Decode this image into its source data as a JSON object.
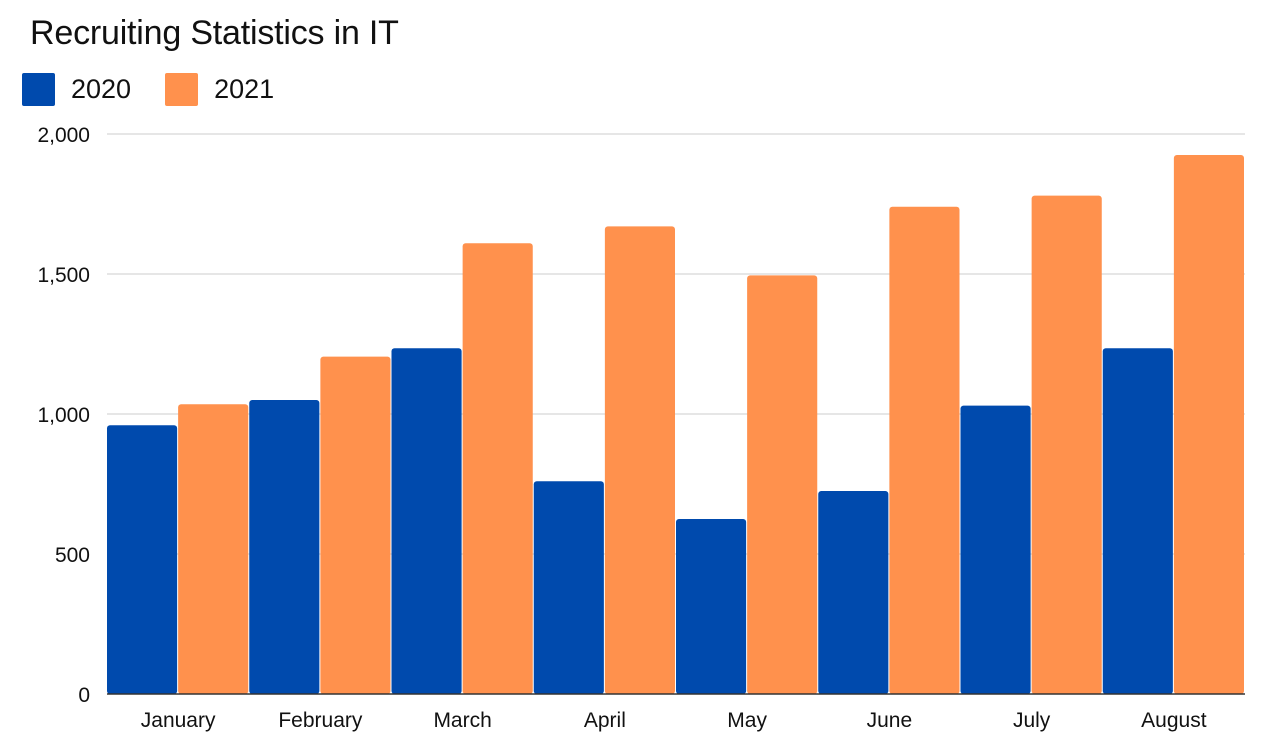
{
  "chart_data": {
    "type": "bar",
    "title": "Recruiting Statistics in IT",
    "xlabel": "",
    "ylabel": "",
    "categories": [
      "January",
      "February",
      "March",
      "April",
      "May",
      "June",
      "July",
      "August"
    ],
    "series": [
      {
        "name": "2020",
        "color": "#004aad",
        "values": [
          960,
          1050,
          1235,
          760,
          625,
          725,
          1030,
          1235
        ]
      },
      {
        "name": "2021",
        "color": "#ff914d",
        "values": [
          1035,
          1205,
          1610,
          1670,
          1495,
          1740,
          1780,
          1925
        ]
      }
    ],
    "ylim": [
      0,
      2000
    ],
    "yticks": [
      0,
      500,
      1000,
      1500,
      2000
    ],
    "ytick_labels": [
      "0",
      "500",
      "1,000",
      "1,500",
      "2,000"
    ],
    "grid": true,
    "legend": "top-left",
    "grid_color": "#cccccc"
  }
}
